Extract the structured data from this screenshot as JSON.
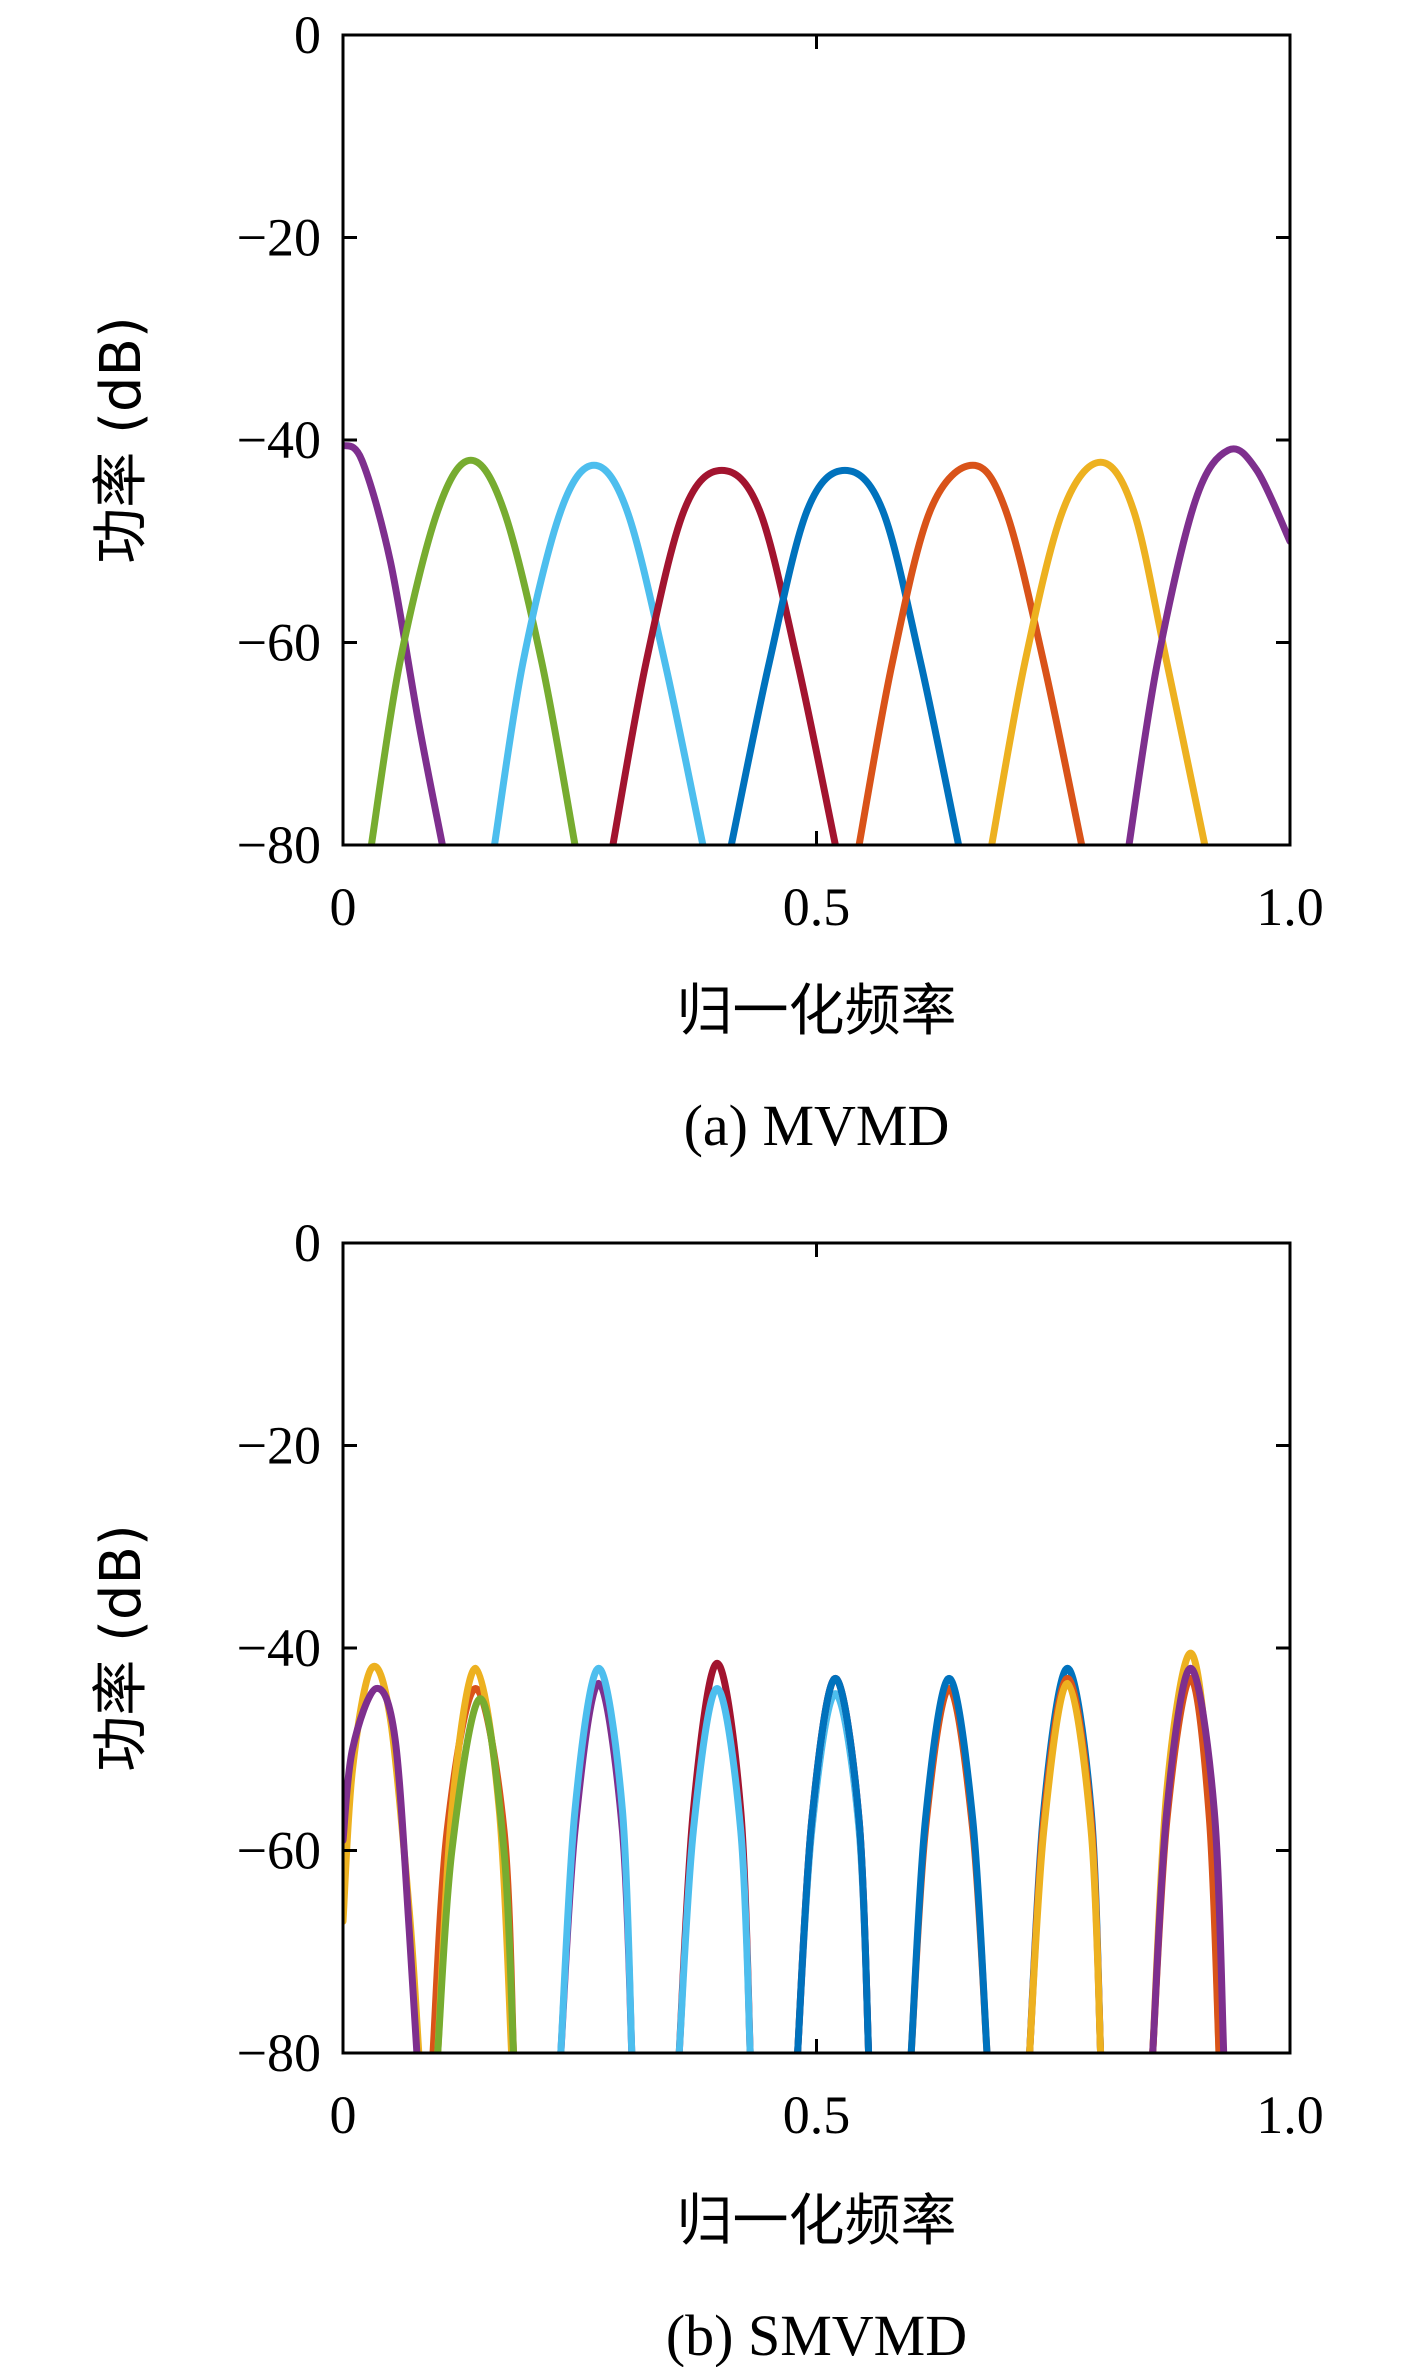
{
  "chart_data": [
    {
      "type": "line",
      "caption": "(a) MVMD",
      "xlabel": "归一化频率",
      "ylabel": "功率 (dB)",
      "xlim": [
        0,
        1.0
      ],
      "ylim": [
        -80,
        0
      ],
      "xticks": [
        "0",
        "0.5",
        "1.0"
      ],
      "yticks": [
        "0",
        "−20",
        "−40",
        "−60",
        "−80"
      ],
      "grid": false,
      "series": [
        {
          "color": "#7E2F8E",
          "x": [
            0,
            0.02,
            0.05,
            0.08,
            0.105
          ],
          "y": [
            -40.5,
            -42,
            -52,
            -68,
            -80
          ]
        },
        {
          "color": "#77AC30",
          "x": [
            0.03,
            0.06,
            0.1,
            0.135,
            0.17,
            0.21,
            0.245
          ],
          "y": [
            -80,
            -62,
            -47,
            -42,
            -47,
            -62,
            -80
          ]
        },
        {
          "color": "#4DBEEE",
          "x": [
            0.16,
            0.19,
            0.23,
            0.265,
            0.3,
            0.34,
            0.38
          ],
          "y": [
            -80,
            -62,
            -47,
            -42.5,
            -47,
            -62,
            -80
          ]
        },
        {
          "color": "#A2142F",
          "x": [
            0.285,
            0.32,
            0.36,
            0.4,
            0.44,
            0.48,
            0.52
          ],
          "y": [
            -80,
            -62,
            -47,
            -43,
            -47,
            -62,
            -80
          ]
        },
        {
          "color": "#0072BD",
          "x": [
            0.41,
            0.45,
            0.49,
            0.53,
            0.57,
            0.61,
            0.65
          ],
          "y": [
            -80,
            -62,
            -47,
            -43,
            -47,
            -62,
            -80
          ]
        },
        {
          "color": "#D95319",
          "x": [
            0.545,
            0.58,
            0.62,
            0.665,
            0.7,
            0.74,
            0.78
          ],
          "y": [
            -80,
            -62,
            -47,
            -42.5,
            -47,
            -62,
            -80
          ]
        },
        {
          "color": "#EDB120",
          "x": [
            0.685,
            0.72,
            0.76,
            0.8,
            0.835,
            0.87,
            0.91
          ],
          "y": [
            -80,
            -62,
            -47,
            -42.2,
            -47,
            -62,
            -80
          ]
        },
        {
          "color": "#7E2F8E",
          "x": [
            0.83,
            0.86,
            0.9,
            0.935,
            0.965,
            1.0
          ],
          "y": [
            -80,
            -62,
            -46,
            -41,
            -43,
            -50
          ]
        }
      ]
    },
    {
      "type": "line",
      "caption": "(b) SMVMD",
      "xlabel": "归一化频率",
      "ylabel": "功率 (dB)",
      "xlim": [
        0,
        1.0
      ],
      "ylim": [
        -80,
        0
      ],
      "xticks": [
        "0",
        "0.5",
        "1.0"
      ],
      "yticks": [
        "0",
        "−20",
        "−40",
        "−60",
        "−80"
      ],
      "grid": false,
      "series": [
        {
          "color": "#EDB120",
          "x": [
            0,
            0.01,
            0.03,
            0.05,
            0.07,
            0.08
          ],
          "y": [
            -67,
            -52,
            -42,
            -47,
            -66,
            -80
          ]
        },
        {
          "color": "#7E2F8E",
          "x": [
            0,
            0.01,
            0.035,
            0.055,
            0.07,
            0.078
          ],
          "y": [
            -59,
            -50,
            -44,
            -49,
            -68,
            -80
          ]
        },
        {
          "color": "#D95319",
          "x": [
            0.095,
            0.11,
            0.14,
            0.17,
            0.18
          ],
          "y": [
            -80,
            -58,
            -44,
            -58,
            -80
          ]
        },
        {
          "color": "#EDB120",
          "x": [
            0.1,
            0.115,
            0.14,
            0.165,
            0.178
          ],
          "y": [
            -80,
            -56,
            -42,
            -56,
            -80
          ]
        },
        {
          "color": "#77AC30",
          "x": [
            0.1,
            0.115,
            0.145,
            0.17,
            0.18
          ],
          "y": [
            -80,
            -60,
            -45,
            -60,
            -80
          ]
        },
        {
          "color": "#7E2F8E",
          "x": [
            0.23,
            0.245,
            0.27,
            0.295,
            0.305
          ],
          "y": [
            -80,
            -58,
            -43.5,
            -58,
            -80
          ]
        },
        {
          "color": "#4DBEEE",
          "x": [
            0.23,
            0.245,
            0.27,
            0.295,
            0.305
          ],
          "y": [
            -80,
            -56,
            -42,
            -56,
            -80
          ]
        },
        {
          "color": "#A2142F",
          "x": [
            0.355,
            0.37,
            0.395,
            0.42,
            0.43
          ],
          "y": [
            -80,
            -56,
            -41.5,
            -56,
            -80
          ]
        },
        {
          "color": "#4DBEEE",
          "x": [
            0.355,
            0.37,
            0.395,
            0.42,
            0.43
          ],
          "y": [
            -80,
            -58,
            -44,
            -58,
            -80
          ]
        },
        {
          "color": "#4DBEEE",
          "x": [
            0.48,
            0.495,
            0.52,
            0.545,
            0.555
          ],
          "y": [
            -80,
            -58,
            -44.5,
            -58,
            -80
          ]
        },
        {
          "color": "#A2142F",
          "x": [
            0.48,
            0.495,
            0.52,
            0.545,
            0.555
          ],
          "y": [
            -80,
            -57,
            -43,
            -57,
            -80
          ]
        },
        {
          "color": "#0072BD",
          "x": [
            0.48,
            0.495,
            0.52,
            0.545,
            0.555
          ],
          "y": [
            -80,
            -57,
            -43,
            -57,
            -80
          ]
        },
        {
          "color": "#D95319",
          "x": [
            0.6,
            0.615,
            0.64,
            0.665,
            0.68
          ],
          "y": [
            -80,
            -58,
            -44,
            -58,
            -80
          ]
        },
        {
          "color": "#0072BD",
          "x": [
            0.6,
            0.615,
            0.64,
            0.665,
            0.68
          ],
          "y": [
            -80,
            -57,
            -43,
            -57,
            -80
          ]
        },
        {
          "color": "#0072BD",
          "x": [
            0.725,
            0.74,
            0.765,
            0.79,
            0.8
          ],
          "y": [
            -80,
            -56,
            -42,
            -56,
            -80
          ]
        },
        {
          "color": "#D95319",
          "x": [
            0.725,
            0.74,
            0.765,
            0.79,
            0.8
          ],
          "y": [
            -80,
            -57,
            -43,
            -57,
            -80
          ]
        },
        {
          "color": "#EDB120",
          "x": [
            0.725,
            0.74,
            0.765,
            0.79,
            0.8
          ],
          "y": [
            -80,
            -58,
            -43.5,
            -58,
            -80
          ]
        },
        {
          "color": "#EDB120",
          "x": [
            0.855,
            0.87,
            0.895,
            0.915,
            0.925
          ],
          "y": [
            -80,
            -54,
            -40.5,
            -54,
            -80
          ]
        },
        {
          "color": "#D95319",
          "x": [
            0.855,
            0.87,
            0.895,
            0.915,
            0.925
          ],
          "y": [
            -80,
            -57,
            -43,
            -57,
            -80
          ]
        },
        {
          "color": "#7E2F8E",
          "x": [
            0.855,
            0.87,
            0.895,
            0.92,
            0.93
          ],
          "y": [
            -80,
            -56,
            -42,
            -56,
            -80
          ]
        }
      ]
    }
  ]
}
